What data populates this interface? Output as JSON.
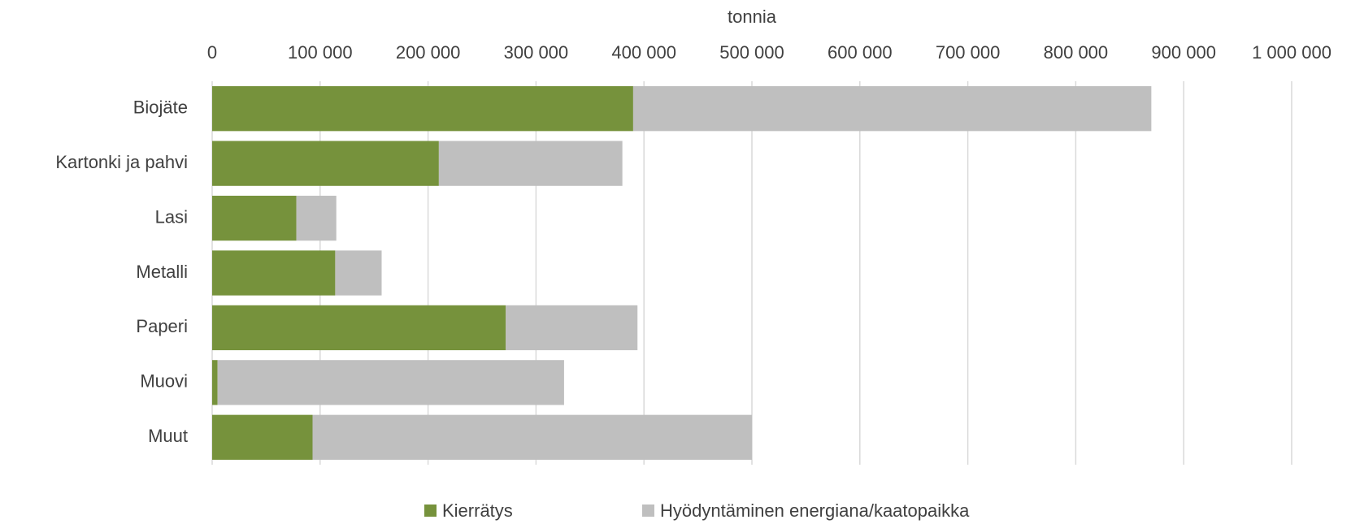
{
  "chart_data": {
    "type": "stacked_bar_horizontal",
    "xlabel": "tonnia",
    "categories": [
      "Biojäte",
      "Kartonki ja pahvi",
      "Lasi",
      "Metalli",
      "Paperi",
      "Muovi",
      "Muut"
    ],
    "series": [
      {
        "name": "Kierrätys",
        "color": "#76923c",
        "values": [
          390000,
          210000,
          78000,
          114000,
          272000,
          5000,
          93000
        ]
      },
      {
        "name": "Hyödyntäminen energiana/kaatopaikka",
        "color": "#bfbfbf",
        "values": [
          480000,
          170000,
          37000,
          43000,
          122000,
          321000,
          407000
        ]
      }
    ],
    "xlim": [
      0,
      1000000
    ],
    "xticks": [
      0,
      {
        "value": 100000,
        "label": "100 000"
      },
      {
        "value": 200000,
        "label": "200 000"
      },
      {
        "value": 300000,
        "label": "300 000"
      },
      {
        "value": 400000,
        "label": "400 000"
      },
      {
        "value": 500000,
        "label": "500 000"
      },
      {
        "value": 600000,
        "label": "600 000"
      },
      {
        "value": 700000,
        "label": "700 000"
      },
      {
        "value": 800000,
        "label": "800 000"
      },
      {
        "value": 900000,
        "label": "900 000"
      },
      {
        "value": 1000000,
        "label": "1 000 000"
      }
    ],
    "grid": true,
    "legend": "bottom"
  }
}
